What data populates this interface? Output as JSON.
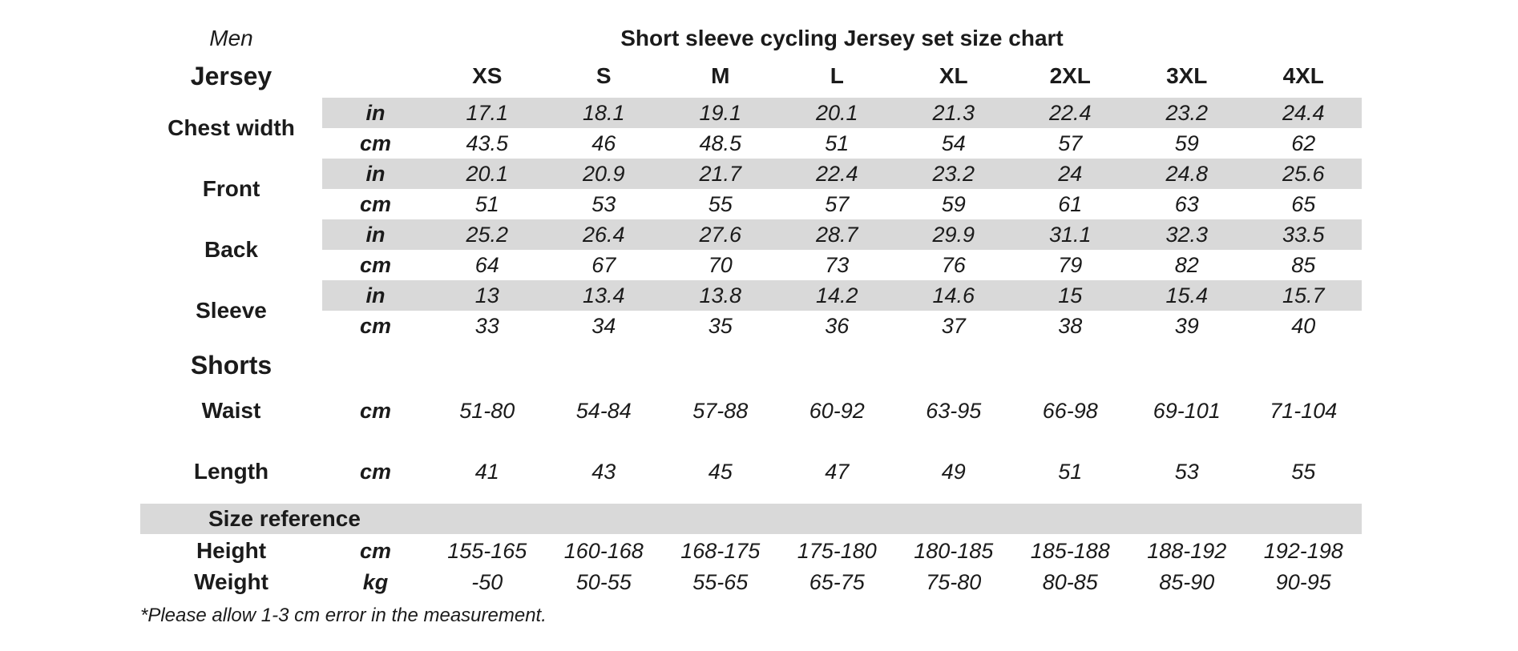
{
  "header": {
    "gender": "Men",
    "title": "Short sleeve cycling Jersey set size chart",
    "jersey_heading": "Jersey",
    "sizes": [
      "XS",
      "S",
      "M",
      "L",
      "XL",
      "2XL",
      "3XL",
      "4XL"
    ]
  },
  "jersey": {
    "chest": {
      "label": "Chest width",
      "in": {
        "unit": "in",
        "v": [
          "17.1",
          "18.1",
          "19.1",
          "20.1",
          "21.3",
          "22.4",
          "23.2",
          "24.4"
        ]
      },
      "cm": {
        "unit": "cm",
        "v": [
          "43.5",
          "46",
          "48.5",
          "51",
          "54",
          "57",
          "59",
          "62"
        ]
      }
    },
    "front": {
      "label": "Front",
      "in": {
        "unit": "in",
        "v": [
          "20.1",
          "20.9",
          "21.7",
          "22.4",
          "23.2",
          "24",
          "24.8",
          "25.6"
        ]
      },
      "cm": {
        "unit": "cm",
        "v": [
          "51",
          "53",
          "55",
          "57",
          "59",
          "61",
          "63",
          "65"
        ]
      }
    },
    "back": {
      "label": "Back",
      "in": {
        "unit": "in",
        "v": [
          "25.2",
          "26.4",
          "27.6",
          "28.7",
          "29.9",
          "31.1",
          "32.3",
          "33.5"
        ]
      },
      "cm": {
        "unit": "cm",
        "v": [
          "64",
          "67",
          "70",
          "73",
          "76",
          "79",
          "82",
          "85"
        ]
      }
    },
    "sleeve": {
      "label": "Sleeve",
      "in": {
        "unit": "in",
        "v": [
          "13",
          "13.4",
          "13.8",
          "14.2",
          "14.6",
          "15",
          "15.4",
          "15.7"
        ]
      },
      "cm": {
        "unit": "cm",
        "v": [
          "33",
          "34",
          "35",
          "36",
          "37",
          "38",
          "39",
          "40"
        ]
      }
    }
  },
  "shorts": {
    "heading": "Shorts",
    "waist": {
      "label": "Waist",
      "unit": "cm",
      "v": [
        "51-80",
        "54-84",
        "57-88",
        "60-92",
        "63-95",
        "66-98",
        "69-101",
        "71-104"
      ]
    },
    "length": {
      "label": "Length",
      "unit": "cm",
      "v": [
        "41",
        "43",
        "45",
        "47",
        "49",
        "51",
        "53",
        "55"
      ]
    }
  },
  "reference": {
    "heading": "Size reference",
    "height": {
      "label": "Height",
      "unit": "cm",
      "v": [
        "155-165",
        "160-168",
        "168-175",
        "175-180",
        "180-185",
        "185-188",
        "188-192",
        "192-198"
      ]
    },
    "weight": {
      "label": "Weight",
      "unit": "kg",
      "v": [
        "-50",
        "50-55",
        "55-65",
        "65-75",
        "75-80",
        "80-85",
        "85-90",
        "90-95"
      ]
    }
  },
  "footnote": "*Please allow 1-3 cm error in the measurement.",
  "colors": {
    "band": "#d9d9d9",
    "text": "#1b1b1b",
    "background": "#ffffff"
  }
}
